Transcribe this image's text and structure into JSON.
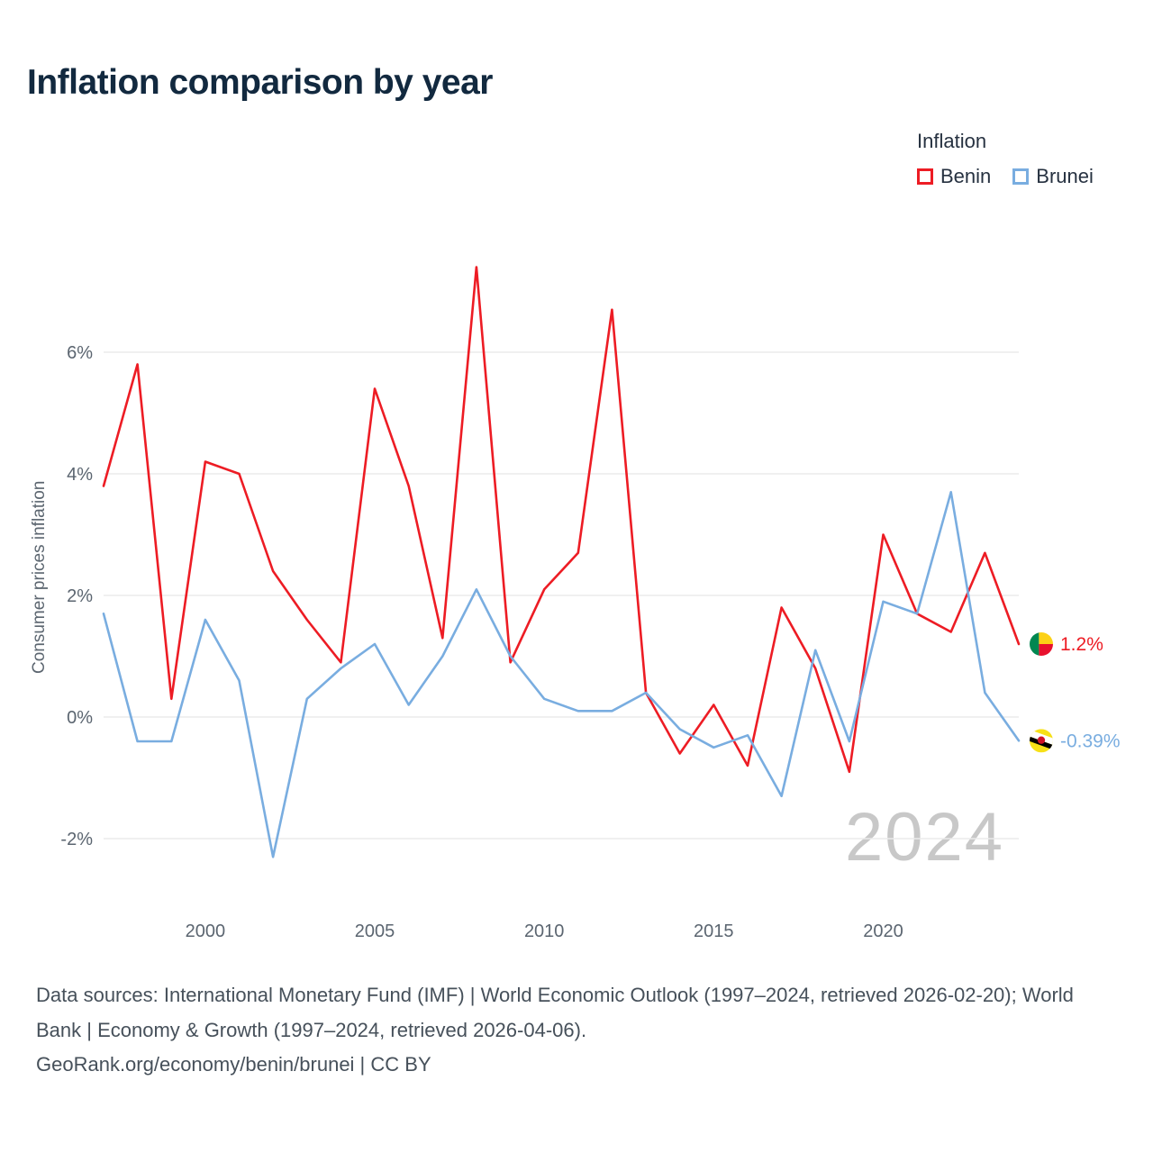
{
  "title": "Inflation comparison by year",
  "legend": {
    "title": "Inflation",
    "items": [
      {
        "label": "Benin",
        "color": "#ed1c24"
      },
      {
        "label": "Brunei",
        "color": "#79ade0"
      }
    ]
  },
  "watermark": "2024",
  "footer": {
    "sources": "Data sources: International Monetary Fund (IMF) | World Economic Outlook (1997–2024, retrieved 2026-02-20); World Bank | Economy & Growth (1997–2024, retrieved 2026-04-06).",
    "attribution": "GeoRank.org/economy/benin/brunei | CC BY"
  },
  "icons": {
    "benin_flag": "benin-flag-icon",
    "benin_colors": [
      "#008751",
      "#fcd116",
      "#e8112d"
    ],
    "brunei_flag": "brunei-flag-icon",
    "brunei_colors": [
      "#f7e017",
      "#ffffff",
      "#000000",
      "#cf1126"
    ]
  },
  "chart_data": {
    "type": "line",
    "title": "Inflation comparison by year",
    "xlabel": "",
    "ylabel": "Consumer prices inflation",
    "x": [
      1997,
      1998,
      1999,
      2000,
      2001,
      2002,
      2003,
      2004,
      2005,
      2006,
      2007,
      2008,
      2009,
      2010,
      2011,
      2012,
      2013,
      2014,
      2015,
      2016,
      2017,
      2018,
      2019,
      2020,
      2021,
      2022,
      2023,
      2024
    ],
    "series": [
      {
        "name": "Benin",
        "color": "#ed1c24",
        "end_label": "1.2%",
        "values": [
          3.8,
          5.8,
          0.3,
          4.2,
          4.0,
          2.4,
          1.6,
          0.9,
          5.4,
          3.8,
          1.3,
          7.4,
          0.9,
          2.1,
          2.7,
          6.7,
          0.4,
          -0.6,
          0.2,
          -0.8,
          1.8,
          0.8,
          -0.9,
          3.0,
          1.7,
          1.4,
          2.7,
          1.2
        ]
      },
      {
        "name": "Brunei",
        "color": "#79ade0",
        "end_label": "-0.39%",
        "values": [
          1.7,
          -0.4,
          -0.4,
          1.6,
          0.6,
          -2.3,
          0.3,
          0.8,
          1.2,
          0.2,
          1.0,
          2.1,
          1.0,
          0.3,
          0.1,
          0.1,
          0.4,
          -0.2,
          -0.5,
          -0.3,
          -1.3,
          1.1,
          -0.4,
          1.9,
          1.7,
          3.7,
          0.4,
          -0.39
        ]
      }
    ],
    "ylim": [
      -2.4,
      7.6
    ],
    "yticks": [
      {
        "value": 6,
        "label": "6%"
      },
      {
        "value": 4,
        "label": "4%"
      },
      {
        "value": 2,
        "label": "2%"
      },
      {
        "value": 0,
        "label": "0%"
      },
      {
        "value": -2,
        "label": "-2%"
      }
    ],
    "xticks": [
      2000,
      2005,
      2010,
      2015,
      2020
    ],
    "grid": "horizontal",
    "legend_position": "top-right"
  }
}
